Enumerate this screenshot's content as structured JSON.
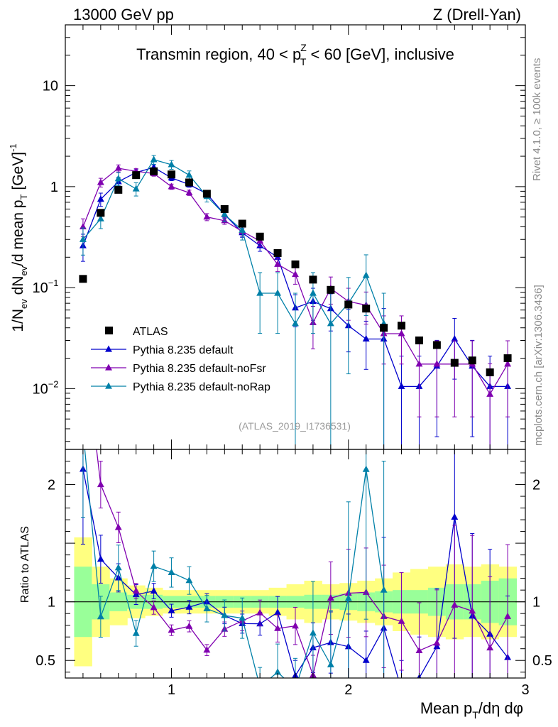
{
  "header": {
    "left": "13000 GeV pp",
    "right": "Z (Drell-Yan)"
  },
  "side_labels": {
    "rivet": "Rivet 4.1.0, ≥ 100k events",
    "mcplots": "mcplots.cern.ch [arXiv:1306.3436]"
  },
  "chart_data": {
    "type": "line",
    "title": "Transmin region, 40 < p_T^Z < 60 [GeV], inclusive",
    "title_parts": {
      "pre": "Transmin region, 40 < p",
      "sup": "Z",
      "sub": "T",
      "post": " < 60 [GeV], inclusive"
    },
    "analysis_id": "(ATLAS_2019_I1736531)",
    "xlabel": "Mean p_T/dη dφ",
    "xlabel_parts": {
      "pre": "Mean p",
      "sub": "T",
      "post": "/dη dφ"
    },
    "ylabel": "1/N_ev dN_ev/d mean p_T [GeV]^-1",
    "ylabel_parts": {
      "a": "1/N",
      "b": "ev",
      "c": " dN",
      "d": "ev",
      "e": "/d mean p",
      "f": "T",
      "g": " [GeV]",
      "h": "-1"
    },
    "ratio_ylabel": "Ratio to ATLAS",
    "xlim": [
      0.4,
      3.0
    ],
    "ylim": [
      0.0025,
      40
    ],
    "yscale": "log",
    "ratio_ylim": [
      0.35,
      2.3
    ],
    "x_major_ticks": [
      1,
      2,
      3
    ],
    "x_tick_labels": [
      "1",
      "2",
      "3"
    ],
    "y_tick_labels": [
      {
        "value": 10,
        "base": "10",
        "exp": ""
      },
      {
        "value": 1,
        "base": "1",
        "exp": ""
      },
      {
        "value": 0.1,
        "base": "10",
        "exp": "−1"
      },
      {
        "value": 0.01,
        "base": "10",
        "exp": "−2"
      }
    ],
    "ratio_y_ticks": [
      0.5,
      1,
      2
    ],
    "ratio_y_tick_labels": [
      "0.5",
      "1",
      "2"
    ],
    "x": [
      0.5,
      0.6,
      0.7,
      0.8,
      0.9,
      1.0,
      1.1,
      1.2,
      1.3,
      1.4,
      1.5,
      1.6,
      1.7,
      1.8,
      1.9,
      2.0,
      2.1,
      2.2,
      2.3,
      2.4,
      2.5,
      2.6,
      2.7,
      2.8,
      2.9
    ],
    "data": {
      "name": "ATLAS",
      "values": [
        0.122,
        0.55,
        0.93,
        1.3,
        1.42,
        1.32,
        1.1,
        0.85,
        0.6,
        0.43,
        0.32,
        0.22,
        0.17,
        0.12,
        0.095,
        0.068,
        0.062,
        0.04,
        0.042,
        0.03,
        0.027,
        0.018,
        0.019,
        0.0145,
        0.02
      ],
      "band_inner": [
        0.3,
        0.15,
        0.08,
        0.06,
        0.06,
        0.05,
        0.05,
        0.05,
        0.05,
        0.05,
        0.05,
        0.05,
        0.05,
        0.06,
        0.06,
        0.07,
        0.08,
        0.09,
        0.1,
        0.1,
        0.12,
        0.15,
        0.15,
        0.18,
        0.2
      ],
      "band_outer": [
        0.55,
        0.3,
        0.2,
        0.14,
        0.12,
        0.1,
        0.1,
        0.1,
        0.1,
        0.1,
        0.1,
        0.12,
        0.15,
        0.18,
        0.15,
        0.16,
        0.18,
        0.2,
        0.25,
        0.28,
        0.3,
        0.32,
        0.3,
        0.32,
        0.3
      ]
    },
    "series": [
      {
        "name": "Pythia 8.235 default",
        "color": "#0000cc",
        "values": [
          0.26,
          0.75,
          1.12,
          1.38,
          1.55,
          1.22,
          1.05,
          0.85,
          0.53,
          0.35,
          0.26,
          0.2,
          0.063,
          0.073,
          0.062,
          0.042,
          0.031,
          0.031,
          0.0105,
          0.0105,
          0.0167,
          0.031,
          0.0167,
          0.0105,
          0.0105
        ],
        "err": [
          0.3,
          0.15,
          0.1,
          0.08,
          0.06,
          0.06,
          0.06,
          0.07,
          0.08,
          0.1,
          0.12,
          0.15,
          0.35,
          0.35,
          0.4,
          0.45,
          0.5,
          1.0,
          1.0,
          1.0,
          0.8,
          0.6,
          0.8,
          1.0,
          1.0
        ]
      },
      {
        "name": "Pythia 8.235 default-noFsr",
        "color": "#8000b0",
        "values": [
          0.4,
          1.1,
          1.52,
          1.42,
          1.35,
          1.0,
          0.87,
          0.5,
          0.46,
          0.36,
          0.29,
          0.17,
          0.135,
          0.045,
          0.098,
          0.073,
          0.067,
          0.035,
          0.035,
          0.0175,
          0.0175,
          0.0175,
          0.0175,
          0.0088,
          0.0175
        ],
        "err": [
          0.2,
          0.1,
          0.08,
          0.06,
          0.06,
          0.06,
          0.06,
          0.08,
          0.08,
          0.1,
          0.12,
          0.15,
          0.2,
          0.45,
          0.3,
          0.35,
          0.35,
          0.5,
          0.5,
          0.7,
          0.7,
          0.7,
          0.7,
          1.0,
          0.7
        ]
      },
      {
        "name": "Pythia 8.235 default-noRap",
        "color": "#0080a8",
        "values": [
          0.3,
          0.48,
          1.2,
          0.95,
          1.85,
          1.65,
          1.3,
          0.8,
          0.53,
          0.37,
          0.088,
          0.088,
          0.044,
          0.088,
          0.044,
          0.07,
          0.132,
          0.044,
          null,
          null,
          null,
          null,
          null,
          null,
          null
        ],
        "err": [
          0.3,
          0.2,
          0.15,
          0.15,
          0.1,
          0.1,
          0.1,
          0.12,
          0.15,
          0.2,
          0.6,
          0.6,
          1.0,
          0.6,
          1.0,
          0.8,
          0.6,
          1.0,
          0,
          0,
          0,
          0,
          0,
          0,
          0
        ]
      }
    ]
  },
  "legend": [
    {
      "label": "ATLAS",
      "marker": "square",
      "color": "#000000"
    },
    {
      "label": "Pythia 8.235 default",
      "marker": "triangle",
      "color": "#0000cc"
    },
    {
      "label": "Pythia 8.235 default-noFsr",
      "marker": "triangle",
      "color": "#8000b0"
    },
    {
      "label": "Pythia 8.235 default-noRap",
      "marker": "triangle",
      "color": "#0080a8"
    }
  ]
}
